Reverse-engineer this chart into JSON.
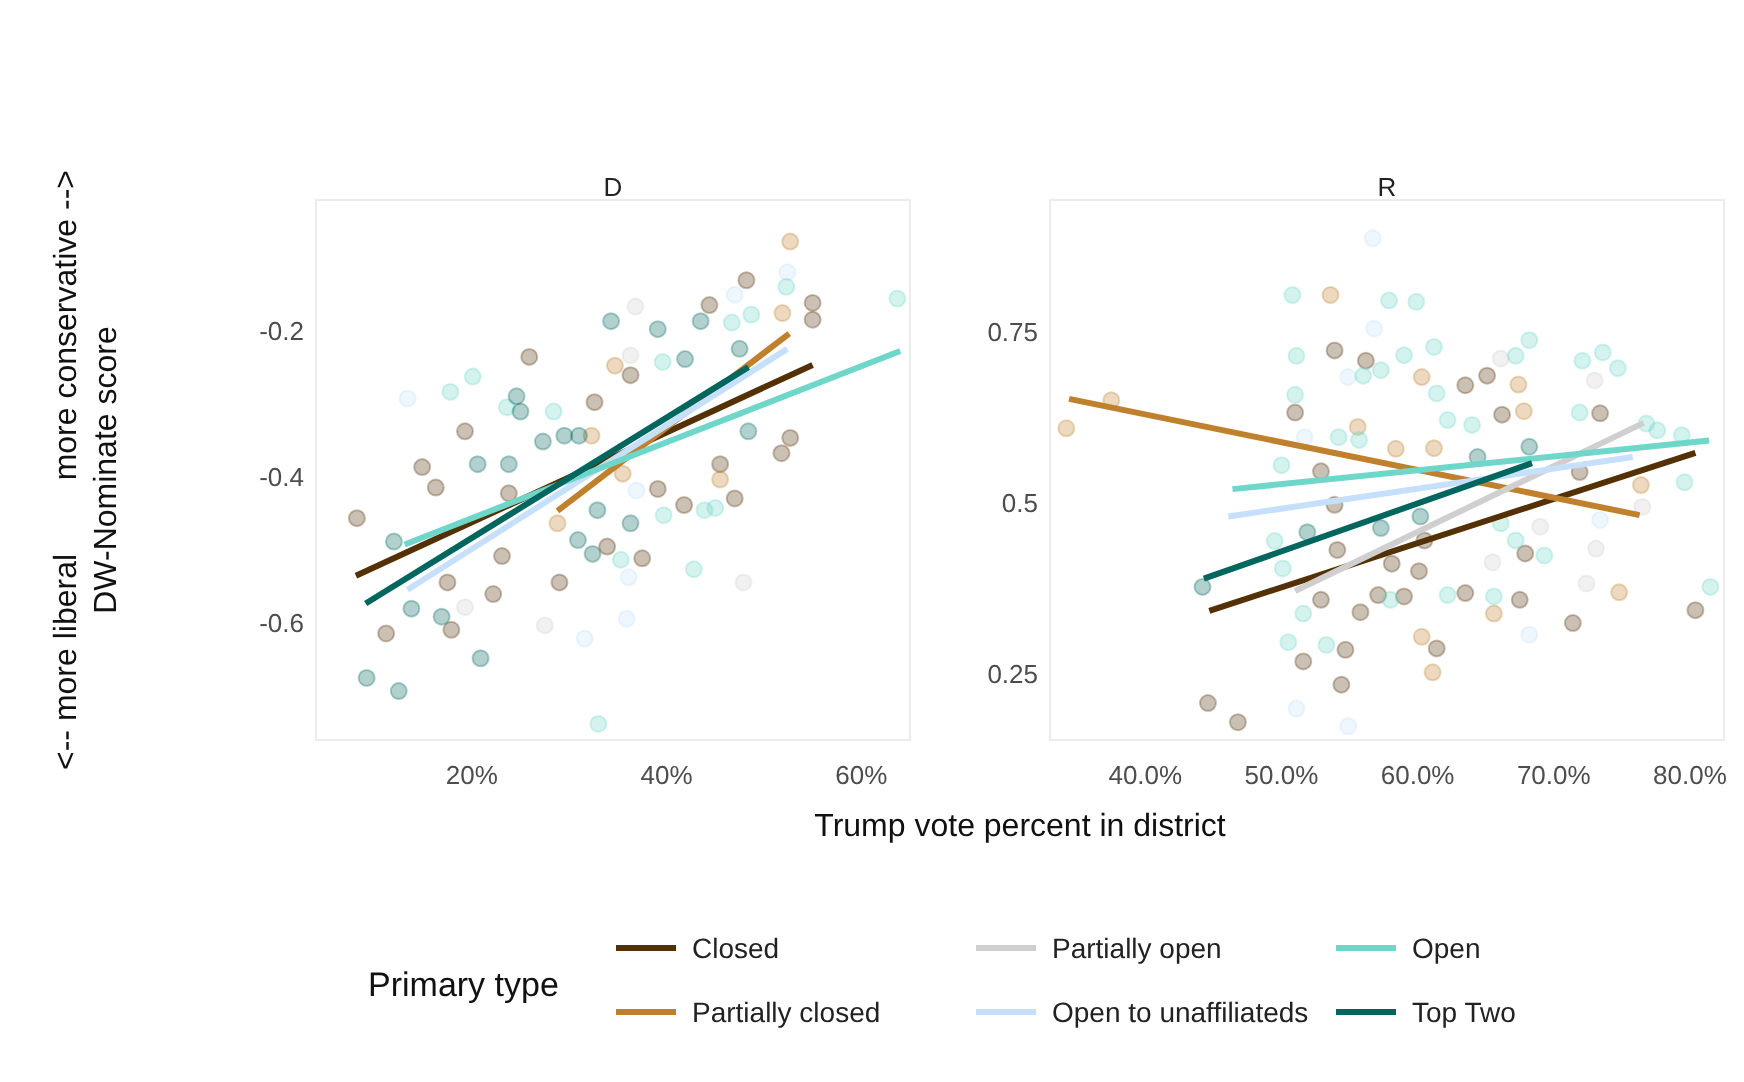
{
  "chart_data": [
    {
      "type": "scatter",
      "title": "D",
      "xlabel": "Trump vote percent in district",
      "ylabel": "DW-Nominate score",
      "annotations": [
        "<-- more liberal",
        "more conservative -->"
      ],
      "xlim": [
        4,
        65
      ],
      "ylim": [
        -0.76,
        -0.02
      ],
      "xticks": [
        {
          "value": 20,
          "label": "20%"
        },
        {
          "value": 40,
          "label": "40%"
        },
        {
          "value": 60,
          "label": "60%"
        }
      ],
      "yticks": [
        -0.6,
        -0.4,
        -0.2
      ],
      "marker": "circle",
      "series": [
        {
          "color": "#543005",
          "x": [
            8.2,
            14.9,
            16.3,
            19.3,
            25.9,
            11.2,
            17.9,
            22.2,
            17.5,
            23.1,
            23.8,
            33.9,
            37.5,
            32.6,
            36.3,
            44.4,
            48.2,
            55.0,
            55.0,
            51.8,
            52.7,
            47.0,
            41.8,
            45.5,
            39.1,
            29.0
          ],
          "values": [
            -0.456,
            -0.386,
            -0.414,
            -0.337,
            -0.235,
            -0.614,
            -0.609,
            -0.56,
            -0.544,
            -0.508,
            -0.422,
            -0.495,
            -0.511,
            -0.297,
            -0.26,
            -0.164,
            -0.13,
            -0.161,
            -0.184,
            -0.367,
            -0.346,
            -0.429,
            -0.438,
            -0.382,
            -0.416,
            -0.544
          ]
        },
        {
          "color": "#bf812d",
          "x": [
            52.7,
            51.9,
            34.7,
            32.3,
            28.8,
            45.5,
            35.5
          ],
          "values": [
            -0.077,
            -0.175,
            -0.247,
            -0.343,
            -0.463,
            -0.403,
            -0.395
          ]
        },
        {
          "color": "#cfcfcf",
          "x": [
            36.8,
            36.3,
            47.9,
            27.5,
            19.3
          ],
          "values": [
            -0.166,
            -0.233,
            -0.544,
            -0.603,
            -0.578
          ]
        },
        {
          "color": "#c6e0fb",
          "x": [
            13.4,
            35.9,
            31.6,
            52.4,
            47.0,
            36.1,
            36.9
          ],
          "values": [
            -0.292,
            -0.594,
            -0.621,
            -0.119,
            -0.15,
            -0.537,
            -0.418
          ]
        },
        {
          "color": "#6fd6ca",
          "x": [
            20.1,
            17.8,
            23.6,
            28.4,
            42.8,
            63.7,
            52.3,
            46.7,
            48.7,
            43.9,
            45.0,
            39.7,
            35.3,
            33.0,
            39.6
          ],
          "values": [
            -0.262,
            -0.283,
            -0.304,
            -0.31,
            -0.526,
            -0.155,
            -0.139,
            -0.188,
            -0.177,
            -0.445,
            -0.442,
            -0.452,
            -0.513,
            -0.738,
            -0.242
          ]
        },
        {
          "color": "#01665e",
          "x": [
            9.2,
            12.5,
            20.9,
            13.8,
            16.9,
            12.0,
            24.6,
            25.0,
            27.3,
            29.5,
            31.0,
            32.4,
            30.9,
            39.1,
            34.3,
            41.9,
            43.5,
            47.5,
            48.4,
            36.3,
            32.9,
            20.6,
            23.8
          ],
          "values": [
            -0.675,
            -0.693,
            -0.648,
            -0.58,
            -0.591,
            -0.488,
            -0.289,
            -0.31,
            -0.351,
            -0.343,
            -0.343,
            -0.505,
            -0.486,
            -0.197,
            -0.186,
            -0.238,
            -0.186,
            -0.224,
            -0.337,
            -0.463,
            -0.445,
            -0.382,
            -0.382
          ]
        },
        {
          "type": "line",
          "marker": "none",
          "color": "#543005",
          "x": [
            8.1,
            55.0
          ],
          "values": [
            -0.535,
            -0.246
          ]
        },
        {
          "type": "line",
          "marker": "none",
          "color": "#bf812d",
          "x": [
            28.8,
            52.6
          ],
          "values": [
            -0.446,
            -0.203
          ]
        },
        {
          "type": "line",
          "marker": "none",
          "color": "#c6e0fb",
          "x": [
            13.4,
            52.4
          ],
          "values": [
            -0.554,
            -0.224
          ]
        },
        {
          "type": "line",
          "marker": "none",
          "color": "#6fd6ca",
          "x": [
            13.1,
            64.0
          ],
          "values": [
            -0.492,
            -0.227
          ]
        },
        {
          "type": "line",
          "marker": "none",
          "color": "#01665e",
          "x": [
            9.1,
            48.4
          ],
          "values": [
            -0.573,
            -0.249
          ]
        }
      ]
    },
    {
      "type": "scatter",
      "title": "R",
      "legend": "bottom",
      "legend_title": "Primary type",
      "xlim": [
        33,
        82.5
      ],
      "ylim": [
        0.153,
        0.943
      ],
      "xticks": [
        {
          "value": 40,
          "label": "40.0%"
        },
        {
          "value": 50,
          "label": "50.0%"
        },
        {
          "value": 60,
          "label": "60.0%"
        },
        {
          "value": 70,
          "label": "70.0%"
        },
        {
          "value": 80,
          "label": "80.0%"
        }
      ],
      "yticks": [
        0.25,
        0.5,
        0.75
      ],
      "marker": "circle",
      "series": [
        {
          "color": "#543005",
          "x": [
            44.6,
            46.8,
            51.6,
            54.4,
            54.7,
            53.9,
            56.2,
            51.0,
            52.9,
            53.9,
            54.1,
            52.9,
            55.8,
            57.1,
            59.0,
            58.1,
            60.1,
            60.5,
            61.4,
            63.5,
            63.5,
            65.1,
            66.2,
            67.5,
            67.9,
            71.4,
            71.9,
            73.4,
            80.4
          ],
          "values": [
            0.207,
            0.179,
            0.268,
            0.234,
            0.285,
            0.723,
            0.708,
            0.632,
            0.546,
            0.497,
            0.431,
            0.358,
            0.34,
            0.365,
            0.363,
            0.411,
            0.4,
            0.445,
            0.287,
            0.368,
            0.672,
            0.686,
            0.629,
            0.358,
            0.426,
            0.324,
            0.545,
            0.631,
            0.343
          ]
        },
        {
          "color": "#bf812d",
          "x": [
            34.2,
            37.5,
            53.6,
            60.3,
            61.2,
            67.4,
            67.8,
            60.3,
            61.1,
            65.6,
            74.8,
            76.4,
            58.4,
            55.6
          ],
          "values": [
            0.609,
            0.65,
            0.804,
            0.684,
            0.58,
            0.673,
            0.634,
            0.304,
            0.252,
            0.338,
            0.369,
            0.526,
            0.579,
            0.611
          ]
        },
        {
          "color": "#cfcfcf",
          "x": [
            66.1,
            73.0,
            72.4,
            73.1,
            69.0,
            65.5,
            76.5
          ],
          "values": [
            0.711,
            0.679,
            0.382,
            0.433,
            0.465,
            0.413,
            0.494
          ]
        },
        {
          "color": "#c6e0fb",
          "x": [
            56.7,
            56.8,
            54.9,
            68.2,
            51.1,
            54.9,
            73.4,
            51.7
          ],
          "values": [
            0.887,
            0.755,
            0.684,
            0.307,
            0.199,
            0.173,
            0.475,
            0.596
          ]
        },
        {
          "color": "#6fd6ca",
          "x": [
            50.8,
            51.1,
            51.0,
            57.9,
            59.9,
            61.2,
            59.0,
            57.3,
            56.0,
            61.4,
            62.2,
            64.0,
            68.2,
            67.2,
            72.1,
            73.6,
            74.7,
            71.9,
            76.8,
            77.6,
            79.4,
            79.6,
            81.5,
            50.0,
            49.5,
            50.1,
            51.6,
            50.5,
            53.3,
            62.2,
            65.6,
            66.1,
            67.2,
            69.3,
            58.0,
            54.2,
            55.7
          ],
          "values": [
            0.804,
            0.715,
            0.658,
            0.796,
            0.794,
            0.728,
            0.716,
            0.694,
            0.686,
            0.66,
            0.621,
            0.614,
            0.738,
            0.715,
            0.708,
            0.72,
            0.697,
            0.632,
            0.616,
            0.606,
            0.599,
            0.53,
            0.377,
            0.555,
            0.444,
            0.404,
            0.338,
            0.296,
            0.292,
            0.365,
            0.363,
            0.47,
            0.445,
            0.423,
            0.358,
            0.596,
            0.592
          ]
        },
        {
          "color": "#01665e",
          "x": [
            44.2,
            51.9,
            57.3,
            68.2,
            64.4,
            60.2
          ],
          "values": [
            0.377,
            0.457,
            0.463,
            0.582,
            0.567,
            0.48
          ]
        },
        {
          "type": "line",
          "marker": "none",
          "name": "Closed",
          "color": "#543005",
          "x": [
            44.7,
            80.4
          ],
          "values": [
            0.342,
            0.573
          ]
        },
        {
          "type": "line",
          "marker": "none",
          "name": "Partially closed",
          "color": "#bf812d",
          "x": [
            34.4,
            76.3
          ],
          "values": [
            0.652,
            0.482
          ]
        },
        {
          "type": "line",
          "marker": "none",
          "name": "Partially open",
          "color": "#cfcfcf",
          "x": [
            51.0,
            76.6
          ],
          "values": [
            0.371,
            0.617
          ]
        },
        {
          "type": "line",
          "marker": "none",
          "name": "Open to unaffiliateds",
          "color": "#c6e0fb",
          "x": [
            46.1,
            75.8
          ],
          "values": [
            0.48,
            0.567
          ]
        },
        {
          "type": "line",
          "marker": "none",
          "name": "Open",
          "color": "#6fd6ca",
          "x": [
            46.4,
            81.4
          ],
          "values": [
            0.52,
            0.591
          ]
        },
        {
          "type": "line",
          "marker": "none",
          "name": "Top Two",
          "color": "#01665e",
          "x": [
            44.3,
            68.4
          ],
          "values": [
            0.389,
            0.558
          ]
        }
      ]
    }
  ]
}
